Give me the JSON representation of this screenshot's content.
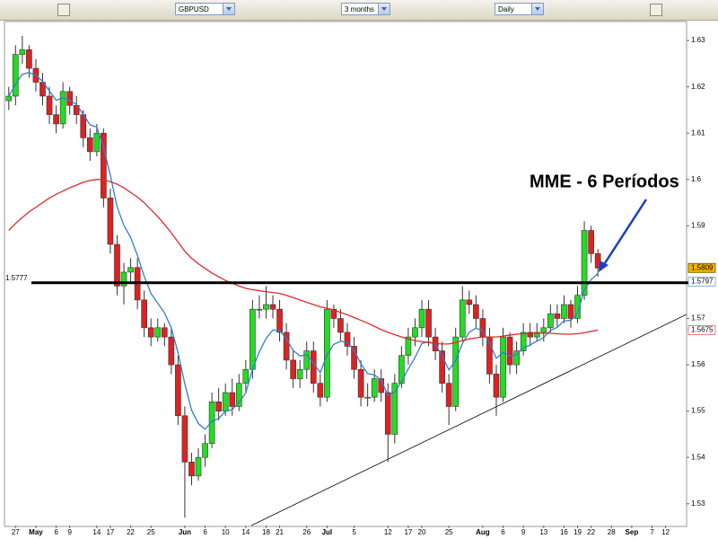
{
  "toolbar": {
    "symbol": "GBPUSD",
    "period": "3 months",
    "interval": "Daily"
  },
  "chart_data": {
    "type": "candlestick",
    "annotation": "MME - 6 Períodos",
    "level": 1.5777,
    "ylim": [
      1.5253,
      1.6339
    ],
    "yticks": [
      1.53,
      1.54,
      1.55,
      1.56,
      1.57,
      1.59,
      1.6,
      1.61,
      1.62,
      1.63
    ],
    "up_color": "#22dd22",
    "down_color": "#dd2222",
    "categories": [
      null,
      "27",
      null,
      null,
      "May",
      null,
      null,
      "6",
      null,
      "9",
      null,
      null,
      null,
      "14",
      null,
      "17",
      null,
      null,
      "22",
      null,
      null,
      "25",
      null,
      null,
      null,
      null,
      "Jun",
      null,
      null,
      "6",
      null,
      null,
      "10",
      null,
      null,
      "14",
      null,
      null,
      "18",
      null,
      "21",
      null,
      null,
      null,
      "26",
      null,
      null,
      "Jul",
      null,
      null,
      null,
      "5",
      null,
      null,
      null,
      null,
      "12",
      null,
      null,
      "17",
      null,
      "20",
      null,
      null,
      null,
      "25",
      null,
      null,
      null,
      null,
      "Aug",
      null,
      null,
      "6",
      null,
      null,
      "9",
      null,
      null,
      "13",
      null,
      null,
      "16",
      null,
      "19",
      null,
      "22",
      null,
      null,
      "28",
      null,
      null,
      "Sep",
      null,
      null,
      "7",
      null,
      "12",
      null,
      null,
      null
    ],
    "month_labels": [
      "May",
      "Jun",
      "Jul",
      "Aug",
      "Sep"
    ],
    "candles": [
      [
        1.617,
        1.62,
        1.615,
        1.618
      ],
      [
        1.618,
        1.629,
        1.616,
        1.627
      ],
      [
        1.627,
        1.631,
        1.625,
        1.628
      ],
      [
        1.628,
        1.629,
        1.622,
        1.624
      ],
      [
        1.624,
        1.626,
        1.619,
        1.621
      ],
      [
        1.621,
        1.623,
        1.616,
        1.618
      ],
      [
        1.618,
        1.62,
        1.612,
        1.614
      ],
      [
        1.614,
        1.616,
        1.61,
        1.612
      ],
      [
        1.612,
        1.621,
        1.611,
        1.619
      ],
      [
        1.619,
        1.62,
        1.614,
        1.616
      ],
      [
        1.616,
        1.618,
        1.612,
        1.614
      ],
      [
        1.614,
        1.615,
        1.607,
        1.609
      ],
      [
        1.609,
        1.611,
        1.604,
        1.606
      ],
      [
        1.606,
        1.612,
        1.605,
        1.61
      ],
      [
        1.61,
        1.611,
        1.594,
        1.596
      ],
      [
        1.596,
        1.598,
        1.584,
        1.586
      ],
      [
        1.586,
        1.588,
        1.575,
        1.577
      ],
      [
        1.577,
        1.582,
        1.573,
        1.58
      ],
      [
        1.58,
        1.583,
        1.578,
        1.581
      ],
      [
        1.581,
        1.583,
        1.572,
        1.574
      ],
      [
        1.574,
        1.576,
        1.566,
        1.568
      ],
      [
        1.568,
        1.57,
        1.564,
        1.566
      ],
      [
        1.566,
        1.57,
        1.565,
        1.568
      ],
      [
        1.568,
        1.569,
        1.564,
        1.566
      ],
      [
        1.566,
        1.568,
        1.558,
        1.56
      ],
      [
        1.56,
        1.562,
        1.547,
        1.549
      ],
      [
        1.549,
        1.551,
        1.527,
        1.539
      ],
      [
        1.539,
        1.541,
        1.534,
        1.536
      ],
      [
        1.536,
        1.542,
        1.535,
        1.54
      ],
      [
        1.54,
        1.545,
        1.538,
        1.543
      ],
      [
        1.543,
        1.554,
        1.542,
        1.552
      ],
      [
        1.552,
        1.555,
        1.548,
        1.55
      ],
      [
        1.55,
        1.556,
        1.549,
        1.554
      ],
      [
        1.554,
        1.557,
        1.549,
        1.551
      ],
      [
        1.551,
        1.558,
        1.55,
        1.556
      ],
      [
        1.556,
        1.561,
        1.554,
        1.559
      ],
      [
        1.559,
        1.574,
        1.557,
        1.572
      ],
      [
        1.572,
        1.575,
        1.57,
        1.572
      ],
      [
        1.572,
        1.577,
        1.57,
        1.573
      ],
      [
        1.573,
        1.575,
        1.57,
        1.572
      ],
      [
        1.572,
        1.574,
        1.565,
        1.567
      ],
      [
        1.567,
        1.569,
        1.559,
        1.561
      ],
      [
        1.561,
        1.563,
        1.555,
        1.557
      ],
      [
        1.557,
        1.561,
        1.555,
        1.559
      ],
      [
        1.559,
        1.565,
        1.557,
        1.563
      ],
      [
        1.563,
        1.565,
        1.554,
        1.556
      ],
      [
        1.556,
        1.558,
        1.551,
        1.553
      ],
      [
        1.553,
        1.574,
        1.552,
        1.572
      ],
      [
        1.572,
        1.573,
        1.568,
        1.57
      ],
      [
        1.57,
        1.572,
        1.565,
        1.567
      ],
      [
        1.567,
        1.569,
        1.562,
        1.564
      ],
      [
        1.564,
        1.566,
        1.557,
        1.559
      ],
      [
        1.559,
        1.561,
        1.551,
        1.553
      ],
      [
        1.553,
        1.556,
        1.551,
        1.553
      ],
      [
        1.553,
        1.559,
        1.552,
        1.557
      ],
      [
        1.557,
        1.559,
        1.552,
        1.554
      ],
      [
        1.554,
        1.556,
        1.539,
        1.545
      ],
      [
        1.545,
        1.558,
        1.543,
        1.556
      ],
      [
        1.556,
        1.564,
        1.555,
        1.562
      ],
      [
        1.562,
        1.568,
        1.56,
        1.566
      ],
      [
        1.566,
        1.57,
        1.564,
        1.568
      ],
      [
        1.568,
        1.574,
        1.566,
        1.572
      ],
      [
        1.572,
        1.574,
        1.564,
        1.566
      ],
      [
        1.566,
        1.568,
        1.561,
        1.563
      ],
      [
        1.563,
        1.565,
        1.554,
        1.556
      ],
      [
        1.556,
        1.558,
        1.547,
        1.551
      ],
      [
        1.551,
        1.568,
        1.55,
        1.566
      ],
      [
        1.566,
        1.577,
        1.565,
        1.574
      ],
      [
        1.574,
        1.576,
        1.571,
        1.573
      ],
      [
        1.573,
        1.575,
        1.568,
        1.57
      ],
      [
        1.57,
        1.572,
        1.564,
        1.566
      ],
      [
        1.566,
        1.568,
        1.556,
        1.558
      ],
      [
        1.558,
        1.56,
        1.549,
        1.553
      ],
      [
        1.553,
        1.568,
        1.552,
        1.566
      ],
      [
        1.566,
        1.567,
        1.558,
        1.56
      ],
      [
        1.56,
        1.565,
        1.558,
        1.563
      ],
      [
        1.563,
        1.569,
        1.562,
        1.567
      ],
      [
        1.567,
        1.569,
        1.564,
        1.566
      ],
      [
        1.566,
        1.569,
        1.565,
        1.567
      ],
      [
        1.567,
        1.57,
        1.565,
        1.568
      ],
      [
        1.568,
        1.573,
        1.567,
        1.571
      ],
      [
        1.571,
        1.573,
        1.568,
        1.57
      ],
      [
        1.57,
        1.575,
        1.569,
        1.573
      ],
      [
        1.573,
        1.574,
        1.568,
        1.57
      ],
      [
        1.57,
        1.577,
        1.569,
        1.575
      ],
      [
        1.575,
        1.591,
        1.574,
        1.589
      ],
      [
        1.589,
        1.59,
        1.582,
        1.584
      ],
      [
        1.584,
        1.585,
        1.579,
        1.5809
      ],
      null,
      null,
      null,
      null,
      null,
      null,
      null,
      null,
      null,
      null,
      null,
      null,
      null
    ],
    "series": [
      {
        "color": "#2f7fd0",
        "values": [
          1.618,
          1.6206,
          1.6227,
          1.6231,
          1.6225,
          1.6212,
          1.6191,
          1.6171,
          1.6176,
          1.6171,
          1.6162,
          1.6141,
          1.6118,
          1.6113,
          1.6069,
          1.6009,
          1.5941,
          1.5901,
          1.5875,
          1.5836,
          1.5791,
          1.5754,
          1.5733,
          1.5712,
          1.568,
          1.5626,
          1.5559,
          1.5502,
          1.5473,
          1.5461,
          1.5478,
          1.5484,
          1.55,
          1.5503,
          1.5519,
          1.5539,
          1.5591,
          1.5628,
          1.5657,
          1.5675,
          1.5674,
          1.5656,
          1.5631,
          1.5619,
          1.5622,
          1.5604,
          1.5583,
          1.5622,
          1.5644,
          1.5651,
          1.5648,
          1.5631,
          1.5602,
          1.5581,
          1.5578,
          1.5567,
          1.5534,
          1.5541,
          1.5564,
          1.5591,
          1.5616,
          1.5646,
          1.565,
          1.5644,
          1.562,
          1.5589,
          1.5609,
          1.5646,
          1.567,
          1.5679,
          1.5674,
          1.5647,
          1.5614,
          1.5627,
          1.5619,
          1.5622,
          1.5636,
          1.5643,
          1.5651,
          1.5659,
          1.5674,
          1.5681,
          1.5695,
          1.5696,
          1.5711,
          1.5762,
          1.5784,
          1.5797,
          null,
          null,
          null,
          null,
          null,
          null,
          null,
          null,
          null,
          null,
          null,
          null,
          null
        ]
      },
      {
        "color": "#dd2a2a",
        "values": [
          1.589,
          1.5905,
          1.5918,
          1.593,
          1.594,
          1.595,
          1.596,
          1.5968,
          1.5975,
          1.5982,
          1.5988,
          1.5994,
          1.5998,
          1.6,
          1.6,
          1.5995,
          1.599,
          1.5982,
          1.5972,
          1.5962,
          1.595,
          1.5935,
          1.592,
          1.5903,
          1.5885,
          1.5865,
          1.5845,
          1.583,
          1.5818,
          1.5808,
          1.5798,
          1.579,
          1.5782,
          1.5776,
          1.577,
          1.5765,
          1.5762,
          1.576,
          1.5758,
          1.5756,
          1.5754,
          1.575,
          1.5745,
          1.574,
          1.5735,
          1.573,
          1.5725,
          1.5722,
          1.5718,
          1.5713,
          1.5708,
          1.5702,
          1.5696,
          1.569,
          1.5683,
          1.5676,
          1.567,
          1.5665,
          1.566,
          1.5656,
          1.5652,
          1.565,
          1.5648,
          1.5646,
          1.5645,
          1.5645,
          1.5648,
          1.5652,
          1.5656,
          1.5658,
          1.566,
          1.566,
          1.566,
          1.5662,
          1.5664,
          1.5666,
          1.5667,
          1.5668,
          1.5668,
          1.5668,
          1.5668,
          1.5667,
          1.5666,
          1.5666,
          1.5667,
          1.5669,
          1.5672,
          1.5675,
          null,
          null,
          null,
          null,
          null,
          null,
          null,
          null,
          null,
          null,
          null,
          null,
          null
        ]
      }
    ]
  }
}
